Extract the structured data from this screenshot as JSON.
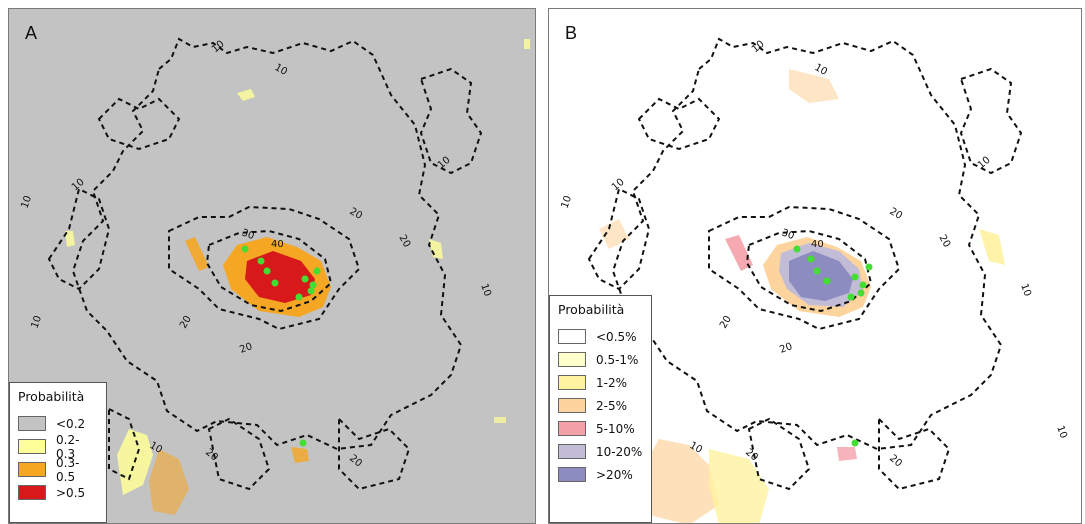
{
  "panels": [
    {
      "label": "A",
      "background": "#c3c3c3",
      "legend": {
        "title": "Probabilità",
        "items": [
          {
            "label": "<0.2",
            "color": "#c3c3c3"
          },
          {
            "label": "0.2-0.3",
            "color": "#ffff99"
          },
          {
            "label": "0.3-0.5",
            "color": "#f5a623"
          },
          {
            "label": ">0.5",
            "color": "#d7191c"
          }
        ]
      }
    },
    {
      "label": "B",
      "background": "#ffffff",
      "legend": {
        "title": "Probabilità",
        "items": [
          {
            "label": "<0.5%",
            "color": "#ffffff"
          },
          {
            "label": "0.5-1%",
            "color": "#ffffcc"
          },
          {
            "label": "1-2%",
            "color": "#fff2a0"
          },
          {
            "label": "2-5%",
            "color": "#fdd49e"
          },
          {
            "label": "5-10%",
            "color": "#f4a0a8"
          },
          {
            "label": "10-20%",
            "color": "#c2bcd6"
          },
          {
            "label": ">20%",
            "color": "#8c8cc0"
          }
        ]
      }
    }
  ],
  "contour_labels": [
    "10",
    "20",
    "30",
    "40"
  ],
  "marker_color": "#44dd33",
  "contour_color": "#111111"
}
